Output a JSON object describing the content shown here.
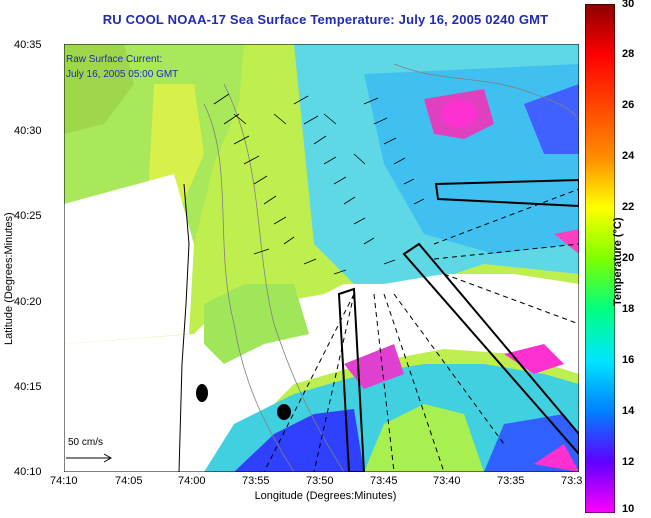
{
  "title": "RU COOL  NOAA-17  Sea Surface Temperature:  July 16, 2005 0240 GMT",
  "legend": {
    "line1": "Raw Surface Current:",
    "line2": "July 16, 2005 05:00 GMT",
    "scale_label": "50 cm/s"
  },
  "axes": {
    "x_title": "Longitude (Degrees:Minutes)",
    "y_title": "Latitude (Degrees:Minutes)",
    "x_ticks": [
      "74:10",
      "74:05",
      "74:00",
      "73:55",
      "73:50",
      "73:45",
      "73:40",
      "73:35",
      "73:3"
    ],
    "y_ticks": [
      "40:35",
      "40:30",
      "40:25",
      "40:20",
      "40:15",
      "40:10"
    ]
  },
  "colorbar": {
    "title": "Temperature (°C)",
    "ticks": [
      "30",
      "28",
      "26",
      "24",
      "22",
      "20",
      "18",
      "16",
      "14",
      "12",
      "10"
    ],
    "colors": [
      "#8b0000",
      "#ff0000",
      "#ff8c00",
      "#ffff00",
      "#7fff00",
      "#00ff80",
      "#00e5ff",
      "#0080ff",
      "#0000ff",
      "#8000ff",
      "#ff00ff"
    ]
  }
}
